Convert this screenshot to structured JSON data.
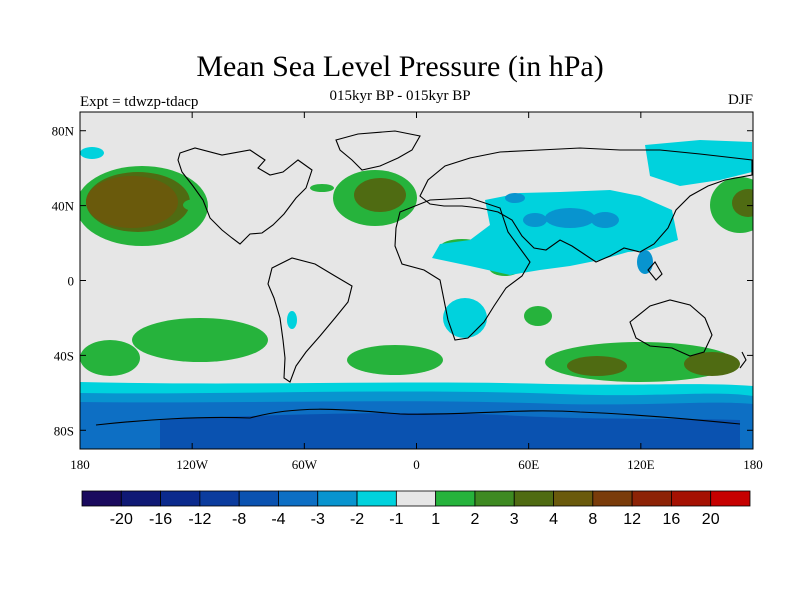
{
  "title": "Mean Sea Level Pressure (in hPa)",
  "subtitle": "015kyr BP - 015kyr BP",
  "experiment_label": "Expt = tdwzp-tdacp",
  "season_label": "DJF",
  "x_ticks": [
    "180",
    "120W",
    "60W",
    "0",
    "60E",
    "120E",
    "180"
  ],
  "y_ticks": [
    "80N",
    "40N",
    "0",
    "40S",
    "80S"
  ],
  "colorbar": {
    "colors": [
      "#1a0a5e",
      "#0f1975",
      "#0b2a8d",
      "#0b3c9e",
      "#0a52b0",
      "#0d6fc4",
      "#0894cf",
      "#00d2dd",
      "#e6e6e6",
      "#26b33c",
      "#3e8a22",
      "#4f6b12",
      "#6a5a0c",
      "#7a3c0a",
      "#8d2306",
      "#a51102",
      "#c60000"
    ],
    "labels": [
      "-20",
      "-16",
      "-12",
      "-8",
      "-4",
      "-3",
      "-2",
      "-1",
      "1",
      "2",
      "3",
      "4",
      "8",
      "12",
      "16",
      "20"
    ]
  },
  "chart_data": {
    "type": "heatmap",
    "title": "Mean Sea Level Pressure (in hPa)",
    "subtitle": "015kyr BP - 015kyr BP",
    "x_range": [
      -180,
      180
    ],
    "y_range": [
      -90,
      90
    ],
    "contour_levels": [
      -20,
      -16,
      -12,
      -8,
      -4,
      -3,
      -2,
      -1,
      1,
      2,
      3,
      4,
      8,
      12,
      16,
      20
    ],
    "colors": {
      "background_fill": "#e6e6e6",
      "land_outline": "#000000"
    }
  }
}
